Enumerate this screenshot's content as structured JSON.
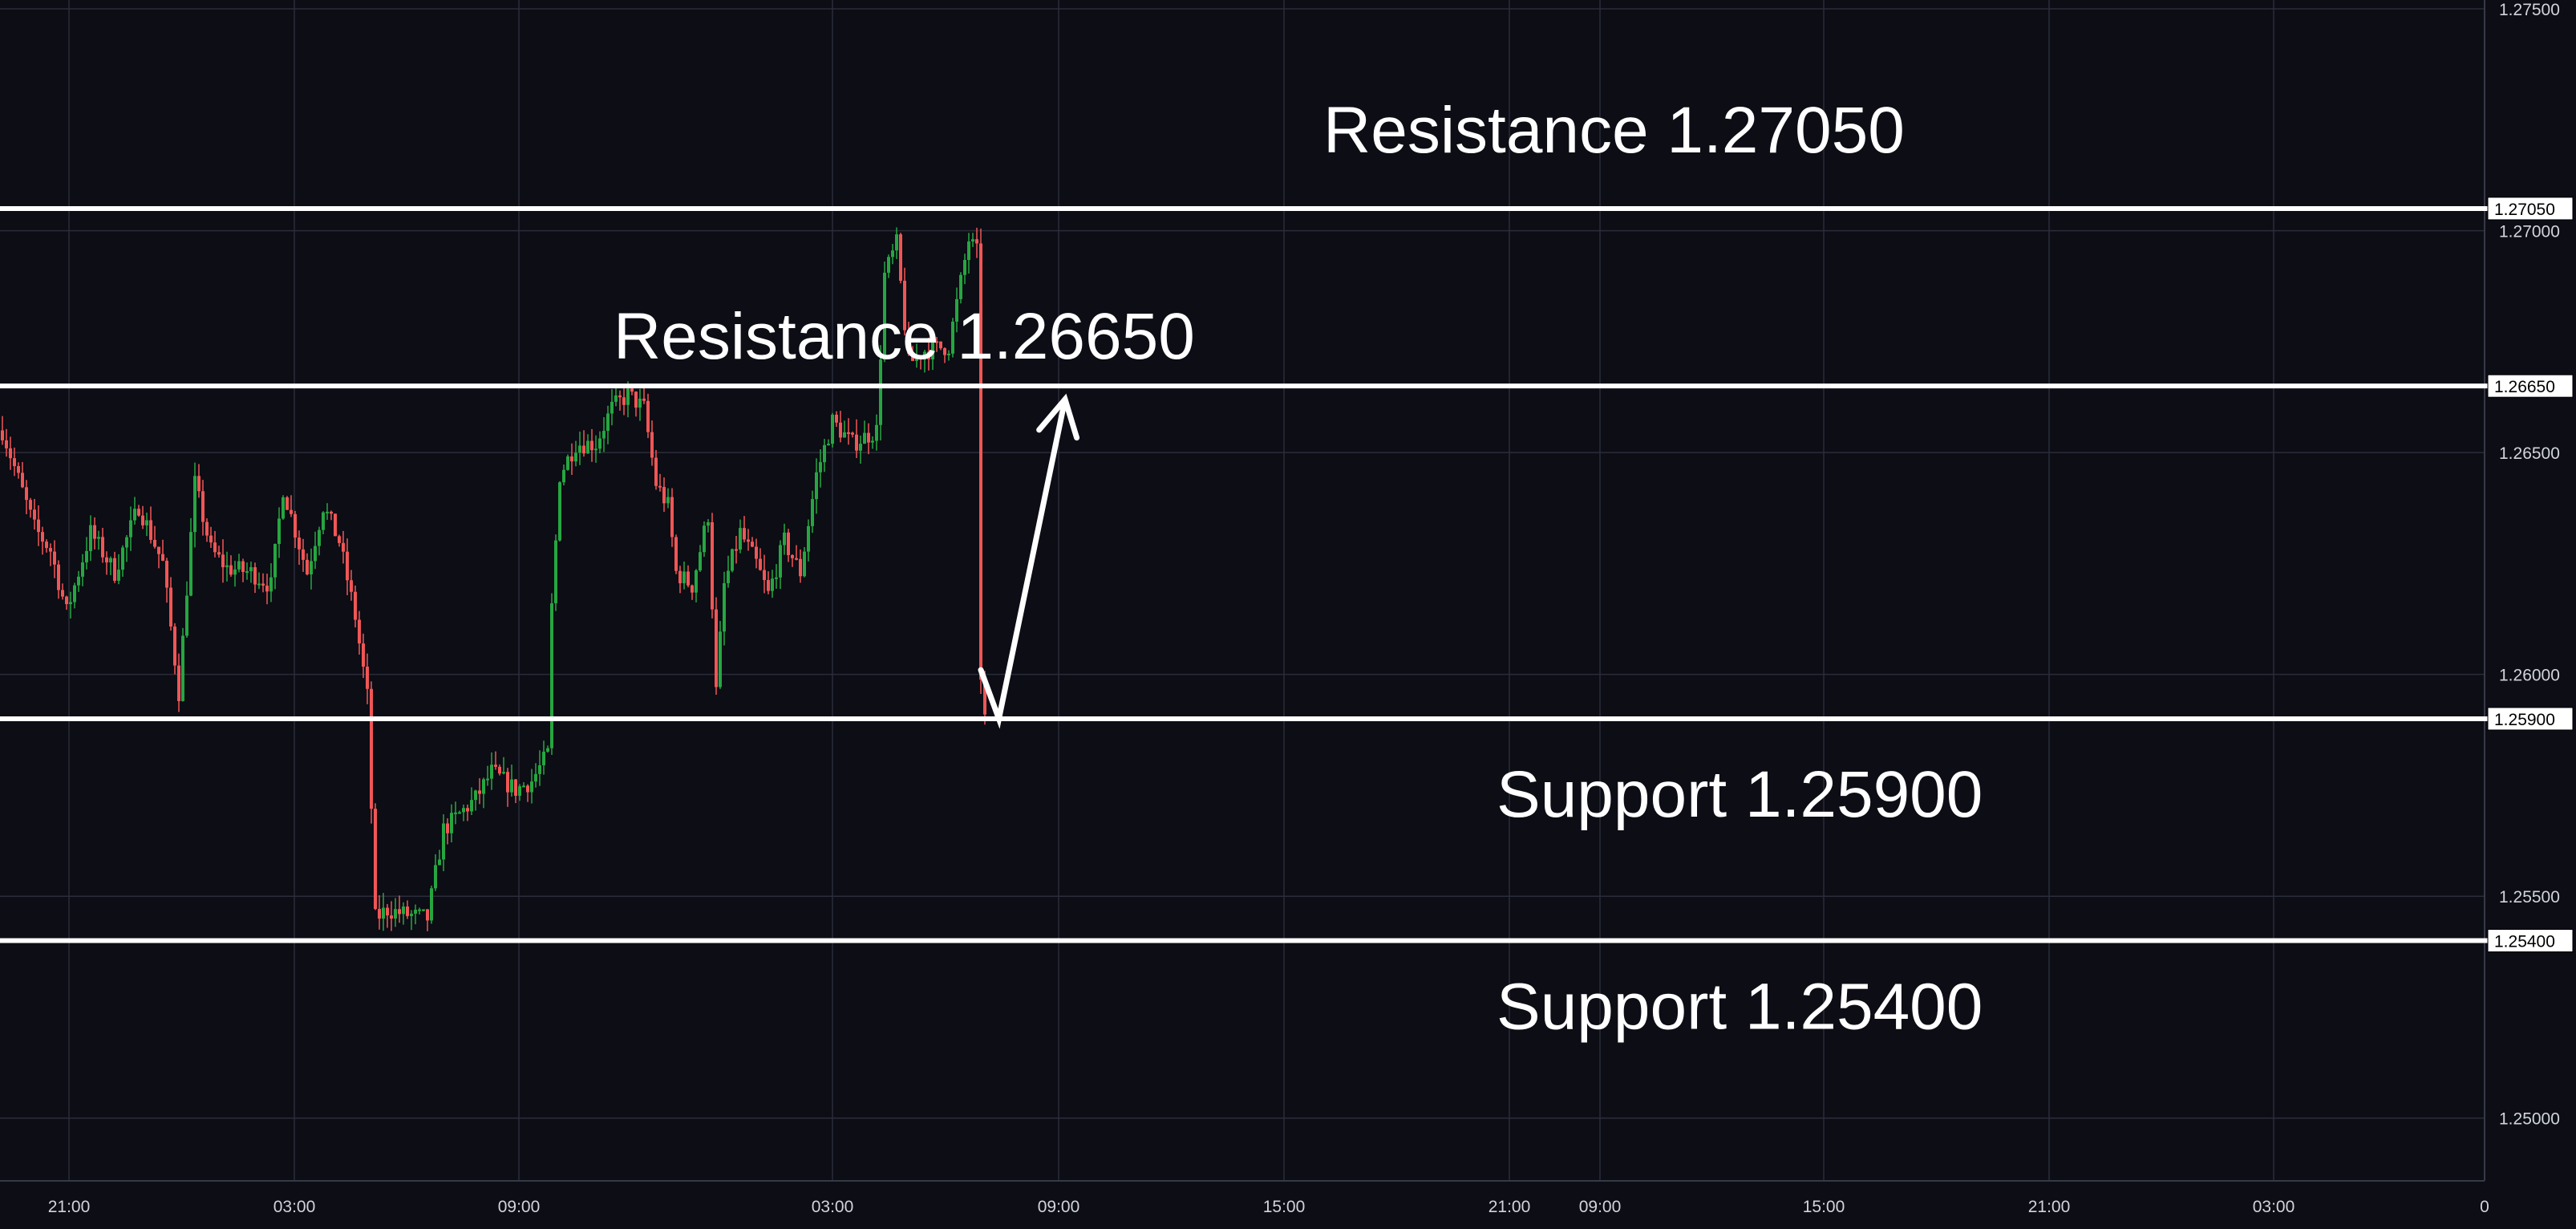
{
  "chart_data": {
    "type": "candlestick",
    "colors": {
      "background": "#0c0d15",
      "grid": "#2a2d3a",
      "up": "#26a641",
      "down": "#f05656",
      "level_line": "#ffffff",
      "axis_text": "#d1d4dc",
      "annotation": "#ffffff"
    },
    "ylim": [
      1.2475,
      1.2752
    ],
    "price_ticks": [
      "1.27500",
      "1.27000",
      "1.26500",
      "1.26000",
      "1.25500",
      "1.25000"
    ],
    "time_ticks": [
      "21:00",
      "03:00",
      "09:00",
      "03:00",
      "09:00",
      "15:00",
      "21:00",
      "09:00",
      "15:00",
      "21:00",
      "03:00",
      "0"
    ],
    "levels": [
      {
        "price": 1.2705,
        "tag": "1.27050",
        "annotation": "Resistance 1.27050"
      },
      {
        "price": 1.2665,
        "tag": "1.26650",
        "annotation": "Resistance 1.26650"
      },
      {
        "price": 1.259,
        "tag": "1.25900",
        "annotation": "Support 1.25900"
      },
      {
        "price": 1.254,
        "tag": "1.25400",
        "annotation": "Support 1.25400"
      }
    ],
    "projection_arrow": [
      {
        "bar": 244,
        "price": 1.2601
      },
      {
        "bar": 248.5,
        "price": 1.259
      },
      {
        "bar": 265,
        "price": 1.2662
      }
    ],
    "price_path": [
      [
        0,
        1.2655
      ],
      [
        8,
        1.2633
      ],
      [
        12,
        1.2628
      ],
      [
        16,
        1.2614
      ],
      [
        22,
        1.2632
      ],
      [
        28,
        1.2623
      ],
      [
        34,
        1.2638
      ],
      [
        40,
        1.2625
      ],
      [
        44,
        1.2596
      ],
      [
        48,
        1.2643
      ],
      [
        52,
        1.2628
      ],
      [
        56,
        1.2624
      ],
      [
        62,
        1.2623
      ],
      [
        67,
        1.262
      ],
      [
        70,
        1.2642
      ],
      [
        76,
        1.2623
      ],
      [
        80,
        1.2638
      ],
      [
        84,
        1.263
      ],
      [
        88,
        1.2613
      ],
      [
        91,
        1.2595
      ],
      [
        93,
        1.2545
      ],
      [
        96,
        1.2547
      ],
      [
        100,
        1.2546
      ],
      [
        106,
        1.2545
      ],
      [
        110,
        1.2565
      ],
      [
        118,
        1.2572
      ],
      [
        122,
        1.2578
      ],
      [
        128,
        1.2574
      ],
      [
        132,
        1.2576
      ],
      [
        136,
        1.2582
      ],
      [
        137,
        1.2615
      ],
      [
        139,
        1.2645
      ],
      [
        143,
        1.2652
      ],
      [
        148,
        1.2652
      ],
      [
        152,
        1.266
      ],
      [
        156,
        1.2663
      ],
      [
        160,
        1.266
      ],
      [
        163,
        1.2643
      ],
      [
        166,
        1.2638
      ],
      [
        168,
        1.2623
      ],
      [
        172,
        1.262
      ],
      [
        176,
        1.2636
      ],
      [
        178,
        1.2596
      ],
      [
        180,
        1.262
      ],
      [
        184,
        1.2632
      ],
      [
        188,
        1.2625
      ],
      [
        191,
        1.2618
      ],
      [
        195,
        1.263
      ],
      [
        199,
        1.2623
      ],
      [
        203,
        1.2645
      ],
      [
        207,
        1.2657
      ],
      [
        212,
        1.2652
      ],
      [
        218,
        1.2655
      ],
      [
        220,
        1.269
      ],
      [
        223,
        1.2697
      ],
      [
        226,
        1.267
      ],
      [
        230,
        1.2673
      ],
      [
        236,
        1.2674
      ],
      [
        241,
        1.2698
      ],
      [
        243,
        1.2695
      ],
      [
        244,
        1.26
      ],
      [
        245,
        1.259
      ]
    ]
  }
}
